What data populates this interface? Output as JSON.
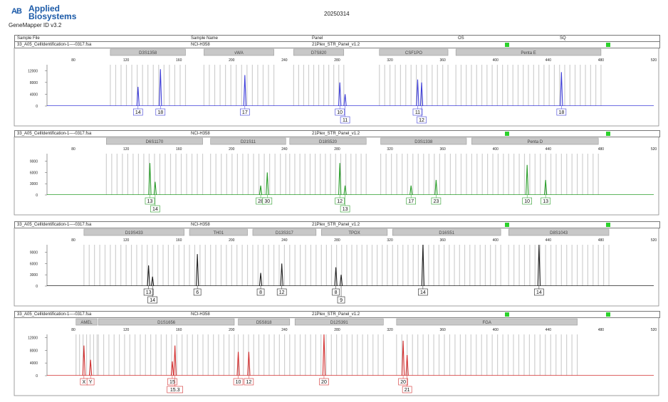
{
  "header": {
    "brand_logo": "AB",
    "brand_name": "Applied\nBiosystems",
    "app_version": "GeneMapper ID v3.2",
    "date": "20250314",
    "col_sample_file": "Sample File",
    "col_sample_name": "Sample Name",
    "col_panel": "Panel",
    "col_os": "OS",
    "col_sq": "SQ"
  },
  "status_colors": {
    "ok": "#2bd12b"
  },
  "chart_data": [
    {
      "type": "line",
      "sample_file": "33_A05_CellIdentification-1----0317.fsa",
      "sample_name": "NCI-H358",
      "panel": "21Plex_STR_Panel_v1.2",
      "color": "#3f3fd8",
      "xlim": [
        60,
        520
      ],
      "x_ticks": [
        80,
        120,
        160,
        200,
        240,
        280,
        320,
        360,
        400,
        440,
        480,
        520
      ],
      "ylim": [
        0,
        14000
      ],
      "y_ticks": [
        0,
        4000,
        8000,
        12000
      ],
      "markers": [
        {
          "label": "D3S1358",
          "range": [
            108,
            165
          ]
        },
        {
          "label": "vWA",
          "range": [
            179,
            232
          ]
        },
        {
          "label": "D7S820",
          "range": [
            247,
            285
          ]
        },
        {
          "label": "CSF1PO",
          "range": [
            312,
            364
          ]
        },
        {
          "label": "Penta E",
          "range": [
            370,
            480
          ]
        }
      ],
      "peaks": [
        {
          "x": 129,
          "y": 6500,
          "allele": "14"
        },
        {
          "x": 146,
          "y": 12500,
          "allele": "18"
        },
        {
          "x": 210,
          "y": 10500,
          "allele": "17"
        },
        {
          "x": 282,
          "y": 8000,
          "allele": "10"
        },
        {
          "x": 286,
          "y": 4000,
          "allele": "11"
        },
        {
          "x": 341,
          "y": 9000,
          "allele": "11"
        },
        {
          "x": 344,
          "y": 8000,
          "allele": "12"
        },
        {
          "x": 450,
          "y": 11500,
          "allele": "18"
        }
      ]
    },
    {
      "type": "line",
      "sample_file": "33_A05_CellIdentification-1----0317.fsa",
      "sample_name": "NCI-H358",
      "panel": "21Plex_STR_Panel_v1.2",
      "color": "#2a9d2a",
      "xlim": [
        60,
        520
      ],
      "x_ticks": [
        80,
        120,
        160,
        200,
        240,
        280,
        320,
        360,
        400,
        440,
        480,
        520
      ],
      "ylim": [
        0,
        11000
      ],
      "y_ticks": [
        0,
        3000,
        6000,
        9000
      ],
      "markers": [
        {
          "label": "D6S1170",
          "range": [
            105,
            178
          ]
        },
        {
          "label": "D21S11",
          "range": [
            184,
            241
          ]
        },
        {
          "label": "D18S520",
          "range": [
            244,
            302
          ]
        },
        {
          "label": "D3S1338",
          "range": [
            313,
            378
          ]
        },
        {
          "label": "Penta D",
          "range": [
            382,
            478
          ]
        }
      ],
      "peaks": [
        {
          "x": 138,
          "y": 8500,
          "allele": "13"
        },
        {
          "x": 142,
          "y": 3500,
          "allele": "14"
        },
        {
          "x": 222,
          "y": 2500,
          "allele": "28"
        },
        {
          "x": 227,
          "y": 6000,
          "allele": "30"
        },
        {
          "x": 282,
          "y": 8500,
          "allele": "12"
        },
        {
          "x": 286,
          "y": 2500,
          "allele": "13"
        },
        {
          "x": 336,
          "y": 2500,
          "allele": "17"
        },
        {
          "x": 355,
          "y": 4000,
          "allele": "23"
        },
        {
          "x": 424,
          "y": 8000,
          "allele": "10"
        },
        {
          "x": 438,
          "y": 4000,
          "allele": "13"
        }
      ]
    },
    {
      "type": "line",
      "sample_file": "33_A05_CellIdentification-1----0317.fsa",
      "sample_name": "NCI-H358",
      "panel": "21Plex_STR_Panel_v1.2",
      "color": "#202020",
      "xlim": [
        60,
        520
      ],
      "x_ticks": [
        80,
        120,
        160,
        200,
        240,
        280,
        320,
        360,
        400,
        440,
        480,
        520
      ],
      "ylim": [
        0,
        11000
      ],
      "y_ticks": [
        0,
        3000,
        6000,
        9000
      ],
      "markers": [
        {
          "label": "D19S433",
          "range": [
            88,
            164
          ]
        },
        {
          "label": "TH01",
          "range": [
            168,
            212
          ]
        },
        {
          "label": "D13S317",
          "range": [
            216,
            264
          ]
        },
        {
          "label": "TPOX",
          "range": [
            268,
            318
          ]
        },
        {
          "label": "D16S51",
          "range": [
            322,
            404
          ]
        },
        {
          "label": "D8S1043",
          "range": [
            410,
            486
          ]
        }
      ],
      "peaks": [
        {
          "x": 137,
          "y": 5500,
          "allele": "13"
        },
        {
          "x": 140,
          "y": 2500,
          "allele": "14"
        },
        {
          "x": 174,
          "y": 8500,
          "allele": "6"
        },
        {
          "x": 222,
          "y": 3500,
          "allele": "8"
        },
        {
          "x": 238,
          "y": 6000,
          "allele": "12"
        },
        {
          "x": 279,
          "y": 5000,
          "allele": "8"
        },
        {
          "x": 283,
          "y": 3000,
          "allele": "9"
        },
        {
          "x": 345,
          "y": 11000,
          "allele": "14"
        },
        {
          "x": 433,
          "y": 11000,
          "allele": "14"
        }
      ]
    },
    {
      "type": "line",
      "sample_file": "33_A05_CellIdentification-1----0317.fsa",
      "sample_name": "NCI-H358",
      "panel": "21Plex_STR_Panel_v1.2",
      "color": "#d23030",
      "xlim": [
        60,
        520
      ],
      "x_ticks": [
        80,
        120,
        160,
        200,
        240,
        280,
        320,
        360,
        400,
        440,
        480,
        520
      ],
      "ylim": [
        0,
        13000
      ],
      "y_ticks": [
        0,
        4000,
        8000,
        12000
      ],
      "markers": [
        {
          "label": "AMEL",
          "range": [
            82,
            98
          ]
        },
        {
          "label": "D1S1656",
          "range": [
            99,
            202
          ]
        },
        {
          "label": "D5S818",
          "range": [
            205,
            244
          ]
        },
        {
          "label": "D12S391",
          "range": [
            248,
            315
          ]
        },
        {
          "label": "FGA",
          "range": [
            325,
            462
          ]
        }
      ],
      "peaks": [
        {
          "x": 88,
          "y": 9500,
          "allele": "X"
        },
        {
          "x": 93,
          "y": 5000,
          "allele": "Y"
        },
        {
          "x": 155,
          "y": 4500,
          "allele": "15"
        },
        {
          "x": 157,
          "y": 9500,
          "allele": "15.3"
        },
        {
          "x": 205,
          "y": 7500,
          "allele": "10"
        },
        {
          "x": 213,
          "y": 7500,
          "allele": "12"
        },
        {
          "x": 270,
          "y": 13000,
          "allele": "20"
        },
        {
          "x": 330,
          "y": 11000,
          "allele": "20"
        },
        {
          "x": 333,
          "y": 6500,
          "allele": "21"
        }
      ]
    }
  ]
}
